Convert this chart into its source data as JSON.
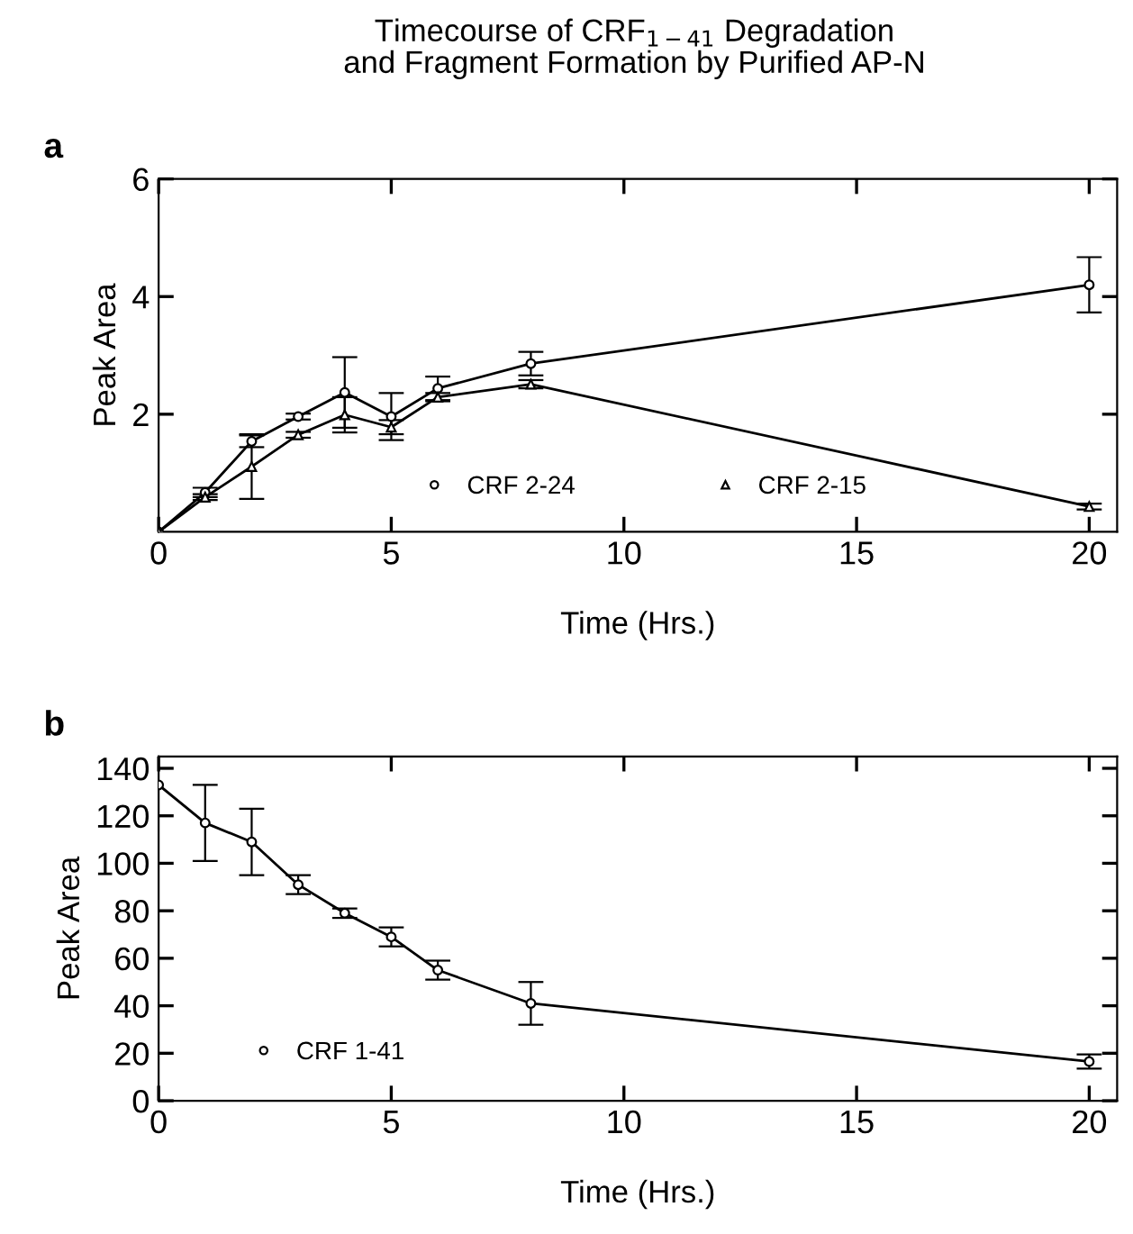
{
  "chart_data": [
    {
      "type": "line",
      "title": "Timecourse of CRF$_{1−41}$ Degradation\nand Fragment Formation by Purified AP-N",
      "annotations": [
        "a"
      ],
      "xlabel": "Time (Hrs.)",
      "ylabel": "Peak Area",
      "x": [
        0,
        1,
        2,
        3,
        4,
        5,
        6,
        8,
        20
      ],
      "series": [
        {
          "name": "CRF 2-24",
          "color": "#000000",
          "marker": "circle",
          "values": [
            0,
            0.67,
            1.54,
            1.96,
            2.37,
            1.96,
            2.44,
            2.86,
            4.2
          ],
          "errors": [
            null,
            0.08,
            0.1,
            0.05,
            0.6,
            0.4,
            0.2,
            0.2,
            0.47
          ]
        },
        {
          "name": "CRF 2-15",
          "color": "#000000",
          "marker": "triangle",
          "values": [
            0,
            0.59,
            1.11,
            1.65,
            1.99,
            1.78,
            2.29,
            2.51,
            0.43
          ],
          "errors": [
            null,
            0.05,
            0.55,
            0.05,
            0.3,
            0.12,
            0.07,
            0.07,
            0.05
          ]
        }
      ],
      "xlim": [
        0,
        20.6
      ],
      "ylim": [
        0,
        6
      ],
      "xticks": [
        0,
        5,
        10,
        15,
        20
      ],
      "yticks": [
        2,
        4,
        6
      ],
      "legend": "bottom",
      "grid": false,
      "line_style": "solid"
    },
    {
      "type": "line",
      "annotations": [
        "b"
      ],
      "xlabel": "Time (Hrs.)",
      "ylabel": "Peak Area",
      "x": [
        0,
        1,
        2,
        3,
        4,
        5,
        6,
        8,
        20
      ],
      "series": [
        {
          "name": "CRF 1-41",
          "color": "#000000",
          "marker": "circle",
          "values": [
            133,
            117,
            109,
            91,
            79,
            69,
            55,
            41,
            16.5
          ],
          "errors": [
            null,
            16,
            14,
            4,
            2,
            4,
            4,
            9,
            3
          ]
        }
      ],
      "xlim": [
        0,
        20.6
      ],
      "ylim": [
        0,
        145
      ],
      "xticks": [
        0,
        5,
        10,
        15,
        20
      ],
      "yticks": [
        0,
        20,
        40,
        60,
        80,
        100,
        120,
        140
      ],
      "legend": "bottom left",
      "grid": false,
      "line_style": "solid"
    }
  ]
}
